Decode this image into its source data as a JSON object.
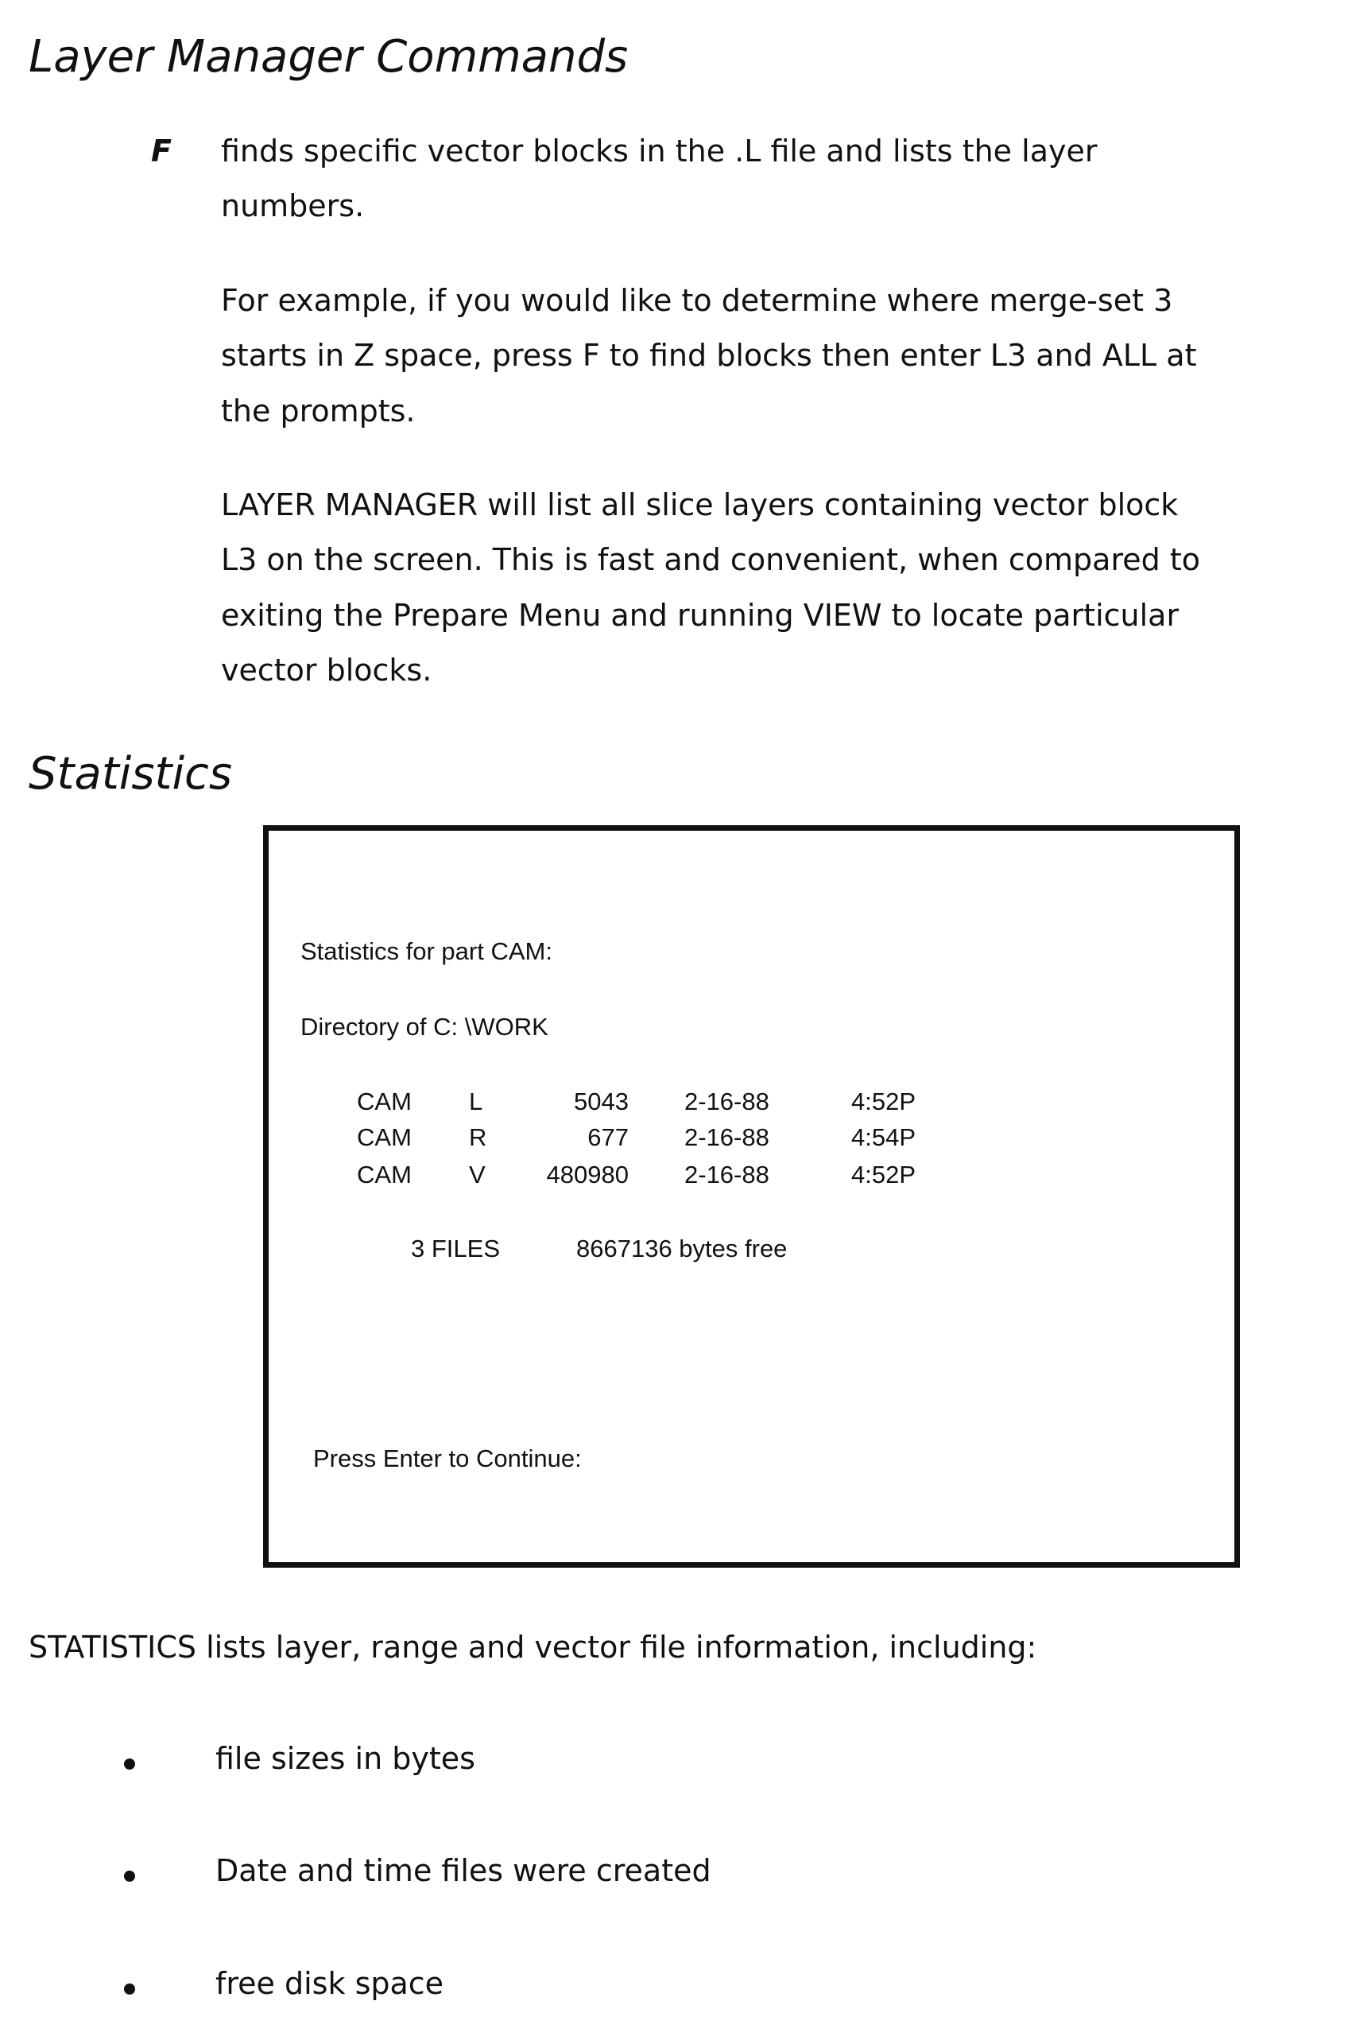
{
  "section1": {
    "heading": "Layer Manager Commands",
    "command_key": "F",
    "paragraphs": [
      [
        "finds specific vector blocks in the .L file and lists the layer",
        "numbers."
      ],
      [
        "For example, if you would like to determine where merge-set 3",
        "starts in Z space, press F to find blocks then enter L3 and ALL at",
        "the prompts."
      ],
      [
        "LAYER MANAGER will list all slice layers containing vector block",
        "L3 on the screen.  This is fast and convenient, when compared to",
        "exiting the Prepare Menu and running VIEW to locate particular",
        "vector blocks."
      ]
    ]
  },
  "section2": {
    "heading": "Statistics",
    "screen": {
      "title": "Statistics for part CAM:",
      "directory": "Directory of C: \\WORK",
      "files": [
        {
          "name": "CAM",
          "ext": "L",
          "size": "5043",
          "date": "2-16-88",
          "time": "4:52P"
        },
        {
          "name": "CAM",
          "ext": "R",
          "size": "677",
          "date": "2-16-88",
          "time": "4:54P"
        },
        {
          "name": "CAM",
          "ext": "V",
          "size": "480980",
          "date": "2-16-88",
          "time": "4:52P"
        }
      ],
      "file_count": "3 FILES",
      "bytes_free": "8667136 bytes free",
      "prompt": "Press Enter to Continue:"
    },
    "description": "STATISTICS lists layer, range and vector file information, including:",
    "bullets": [
      "file sizes in bytes",
      "Date and time files were created",
      "free disk space"
    ]
  }
}
